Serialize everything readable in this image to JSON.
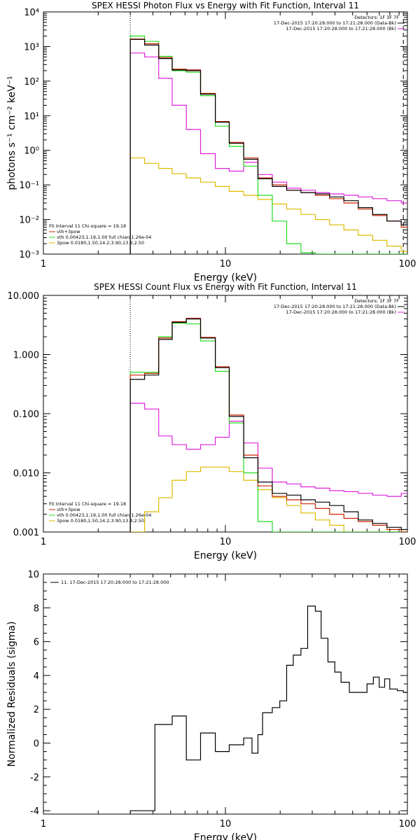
{
  "colors": {
    "data": "#000000",
    "total": "#cc2200",
    "thermal": "#22dd22",
    "powerlaw": "#ddbb00",
    "background": "#dd22dd"
  },
  "chart_data": [
    {
      "type": "line",
      "title": "SPEX HESSI Photon Flux vs Energy with Fit Function, Interval 11",
      "xlabel": "Energy (keV)",
      "ylabel": "photons s⁻¹ cm⁻² keV⁻¹",
      "xscale": "log",
      "yscale": "log",
      "xlim": [
        1,
        100
      ],
      "ylim": [
        0.001,
        10000
      ],
      "xticks": [
        1,
        10,
        100
      ],
      "xtick_labels": [
        "1",
        "10",
        "100"
      ],
      "yticks": [
        0.001,
        0.01,
        0.1,
        1,
        10,
        100,
        1000,
        10000
      ],
      "ytick_labels": [
        "10⁻³",
        "10⁻²",
        "10⁻¹",
        "10⁰",
        "10¹",
        "10²",
        "10³",
        "10⁴"
      ],
      "vlines": [
        3,
        95
      ],
      "legend_top": {
        "detectors": "Detectors: 1F 3F 7F",
        "lines": [
          {
            "text": "17-Dec-2015 17:20:28.000 to 17:21:28.000 (Data-Bk)",
            "series": "data"
          },
          {
            "text": "17-Dec-2015 17:20:28.000 to 17:21:28.000 (Bk)",
            "series": "background"
          }
        ]
      },
      "legend_bottom": {
        "header": "Fit Interval 11    Chi-square = 19.18",
        "lines": [
          {
            "text": "vth+3pow",
            "series": "total"
          },
          {
            "text": "vth 0.00423,1.19,1.00  full chian 1.26e-04",
            "series": "thermal"
          },
          {
            "text": "3pow 0.0180,1.50,14.2,3.90,13.8,2.50",
            "series": "powerlaw"
          }
        ]
      },
      "edges": [
        3.0,
        3.6,
        4.3,
        5.1,
        6.1,
        7.3,
        8.8,
        10.5,
        12.6,
        15.1,
        18.1,
        21.7,
        26.0,
        31.2,
        37.4,
        44.8,
        53.7,
        64.4,
        77.2,
        92.5,
        100
      ],
      "series": [
        {
          "key": "data",
          "values": [
            1600,
            1100,
            450,
            210,
            200,
            42,
            6.5,
            1.6,
            0.55,
            0.15,
            0.09,
            0.07,
            0.06,
            0.055,
            0.045,
            0.035,
            0.022,
            0.014,
            0.009,
            0.007
          ]
        },
        {
          "key": "total",
          "values": [
            1650,
            1200,
            480,
            220,
            210,
            44,
            6.8,
            1.7,
            0.6,
            0.16,
            0.1,
            0.07,
            0.06,
            0.05,
            0.04,
            0.03,
            0.02,
            0.013,
            0.009,
            0.006
          ]
        },
        {
          "key": "thermal",
          "values": [
            2000,
            1400,
            520,
            200,
            180,
            38,
            5.0,
            1.3,
            0.35,
            0.05,
            0.009,
            0.002,
            0.0011,
            0.001,
            0.001,
            0.001,
            0.001,
            0.001,
            0.001,
            0.001
          ]
        },
        {
          "key": "powerlaw",
          "values": [
            0.6,
            0.42,
            0.3,
            0.21,
            0.16,
            0.12,
            0.09,
            0.065,
            0.05,
            0.038,
            0.028,
            0.02,
            0.014,
            0.01,
            0.007,
            0.005,
            0.0035,
            0.0025,
            0.0017,
            0.0012
          ]
        },
        {
          "key": "background",
          "values": [
            650,
            500,
            120,
            20,
            4.0,
            0.8,
            0.3,
            0.25,
            0.45,
            0.2,
            0.12,
            0.08,
            0.07,
            0.06,
            0.055,
            0.05,
            0.045,
            0.04,
            0.035,
            0.03
          ]
        }
      ]
    },
    {
      "type": "line",
      "title": "SPEX HESSI Count Flux vs Energy with Fit Function, Interval 11",
      "xlabel": "Energy (keV)",
      "ylabel": "",
      "xscale": "log",
      "yscale": "log",
      "xlim": [
        1,
        100
      ],
      "ylim": [
        0.001,
        10
      ],
      "xticks": [
        1,
        10,
        100
      ],
      "xtick_labels": [
        "1",
        "10",
        "100"
      ],
      "yticks": [
        0.001,
        0.01,
        0.1,
        1,
        10
      ],
      "ytick_labels": [
        "0.001",
        "0.010",
        "0.100",
        "1.000",
        "10.000"
      ],
      "vlines": [
        3
      ],
      "legend_top": {
        "detectors": "Detectors: 1F 3F 7F",
        "lines": [
          {
            "text": "17-Dec-2015 17:20:28.000 to 17:21:28.000 (Data-Bk)",
            "series": "data"
          },
          {
            "text": "17-Dec-2015 17:20:28.000 to 17:21:28.000 (Bk)",
            "series": "background"
          }
        ]
      },
      "legend_bottom": {
        "header": "Fit Interval 11    Chi-square = 19.18",
        "lines": [
          {
            "text": "vth+3pow",
            "series": "total"
          },
          {
            "text": "vth 0.00423,1.19,1.00  full chian 1.26e-04",
            "series": "thermal"
          },
          {
            "text": "3pow 0.0180,1.50,14.2,3.90,13.8,2.50",
            "series": "powerlaw"
          }
        ]
      },
      "edges": [
        3.0,
        3.6,
        4.3,
        5.1,
        6.1,
        7.3,
        8.8,
        10.5,
        12.6,
        15.1,
        18.1,
        21.7,
        26.0,
        31.2,
        37.4,
        44.8,
        53.7,
        64.4,
        77.2,
        92.5,
        100
      ],
      "series": [
        {
          "key": "data",
          "values": [
            0.38,
            0.45,
            1.8,
            3.5,
            4.0,
            1.9,
            0.6,
            0.09,
            0.018,
            0.007,
            0.0045,
            0.0042,
            0.0035,
            0.0032,
            0.0028,
            0.0022,
            0.0016,
            0.0014,
            0.0012,
            0.0011
          ]
        },
        {
          "key": "total",
          "values": [
            0.45,
            0.48,
            1.9,
            3.6,
            4.1,
            1.95,
            0.62,
            0.095,
            0.02,
            0.006,
            0.004,
            0.0035,
            0.003,
            0.0025,
            0.002,
            0.0017,
            0.0015,
            0.0013,
            0.0011,
            0.001
          ]
        },
        {
          "key": "thermal",
          "values": [
            0.5,
            0.5,
            2.0,
            3.4,
            3.3,
            1.7,
            0.52,
            0.07,
            0.01,
            0.0015,
            0.001,
            0.001,
            0.001,
            0.001,
            0.001,
            0.001,
            0.001,
            0.001,
            0.001,
            0.001
          ]
        },
        {
          "key": "powerlaw",
          "values": [
            0.001,
            0.0022,
            0.0038,
            0.0075,
            0.0105,
            0.0125,
            0.0125,
            0.0105,
            0.0075,
            0.0052,
            0.0038,
            0.0028,
            0.0021,
            0.0016,
            0.0013,
            0.001,
            0.001,
            0.001,
            0.001,
            0.001
          ]
        },
        {
          "key": "background",
          "values": [
            0.15,
            0.12,
            0.042,
            0.03,
            0.025,
            0.03,
            0.04,
            0.075,
            0.032,
            0.012,
            0.007,
            0.0065,
            0.0058,
            0.0055,
            0.005,
            0.0048,
            0.0045,
            0.0042,
            0.004,
            0.0045
          ]
        }
      ]
    },
    {
      "type": "line",
      "title": "",
      "xlabel": "Energy (keV)",
      "ylabel": "Normalized Residuals (sigma)",
      "xscale": "log",
      "yscale": "linear",
      "xlim": [
        1,
        100
      ],
      "ylim": [
        -4.2,
        10
      ],
      "xticks": [
        1,
        10,
        100
      ],
      "xtick_labels": [
        "1",
        "10",
        "100"
      ],
      "yticks": [
        -4,
        -2,
        0,
        2,
        4,
        6,
        8,
        10
      ],
      "ytick_labels": [
        "-4",
        "-2",
        "0",
        "2",
        "4",
        "6",
        "8",
        "10"
      ],
      "vlines": [],
      "legend_top": {
        "detectors": "",
        "lines": [
          {
            "text": "11. 17-Dec-2015 17:20:28.000 to 17:21:28.000",
            "series": "data"
          }
        ]
      },
      "legend_bottom": {
        "header": "",
        "lines": []
      },
      "edges": [
        3.0,
        4.1,
        5.1,
        6.1,
        7.3,
        8.8,
        10.5,
        12.6,
        14.0,
        15.1,
        16.0,
        18.1,
        19.9,
        21.7,
        23.6,
        26.0,
        28.3,
        31.2,
        33.6,
        36.6,
        39.9,
        43.2,
        48.0,
        54.0,
        60.0,
        65.0,
        70.0,
        75.0,
        80.0,
        88.0,
        95.0,
        100
      ],
      "series": [
        {
          "key": "data",
          "values": [
            -4.0,
            1.1,
            1.6,
            -1.0,
            0.6,
            -0.5,
            -0.1,
            0.3,
            -0.6,
            0.5,
            1.8,
            2.1,
            2.5,
            4.6,
            5.2,
            5.6,
            8.1,
            7.8,
            6.2,
            4.8,
            4.2,
            3.6,
            3.0,
            3.0,
            3.5,
            3.9,
            3.3,
            3.8,
            3.2,
            3.1,
            3.0
          ]
        }
      ]
    }
  ]
}
